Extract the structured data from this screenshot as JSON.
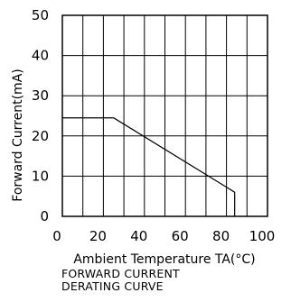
{
  "chart_data": {
    "type": "line",
    "title_lines": [
      "FORWARD CURRENT",
      "DERATING CURVE"
    ],
    "xlabel": "Ambient Temperature TA(°C)",
    "ylabel": "Forward Current(mA)",
    "xlim": [
      0,
      100
    ],
    "ylim": [
      0,
      50
    ],
    "xticks": [
      "0",
      "20",
      "40",
      "60",
      "80",
      "100"
    ],
    "yticks": [
      "0",
      "10",
      "20",
      "30",
      "40",
      "50"
    ],
    "grid": true,
    "series": [
      {
        "x": [
          0,
          25,
          84,
          84
        ],
        "y": [
          24.5,
          24.5,
          6,
          0
        ]
      }
    ]
  }
}
